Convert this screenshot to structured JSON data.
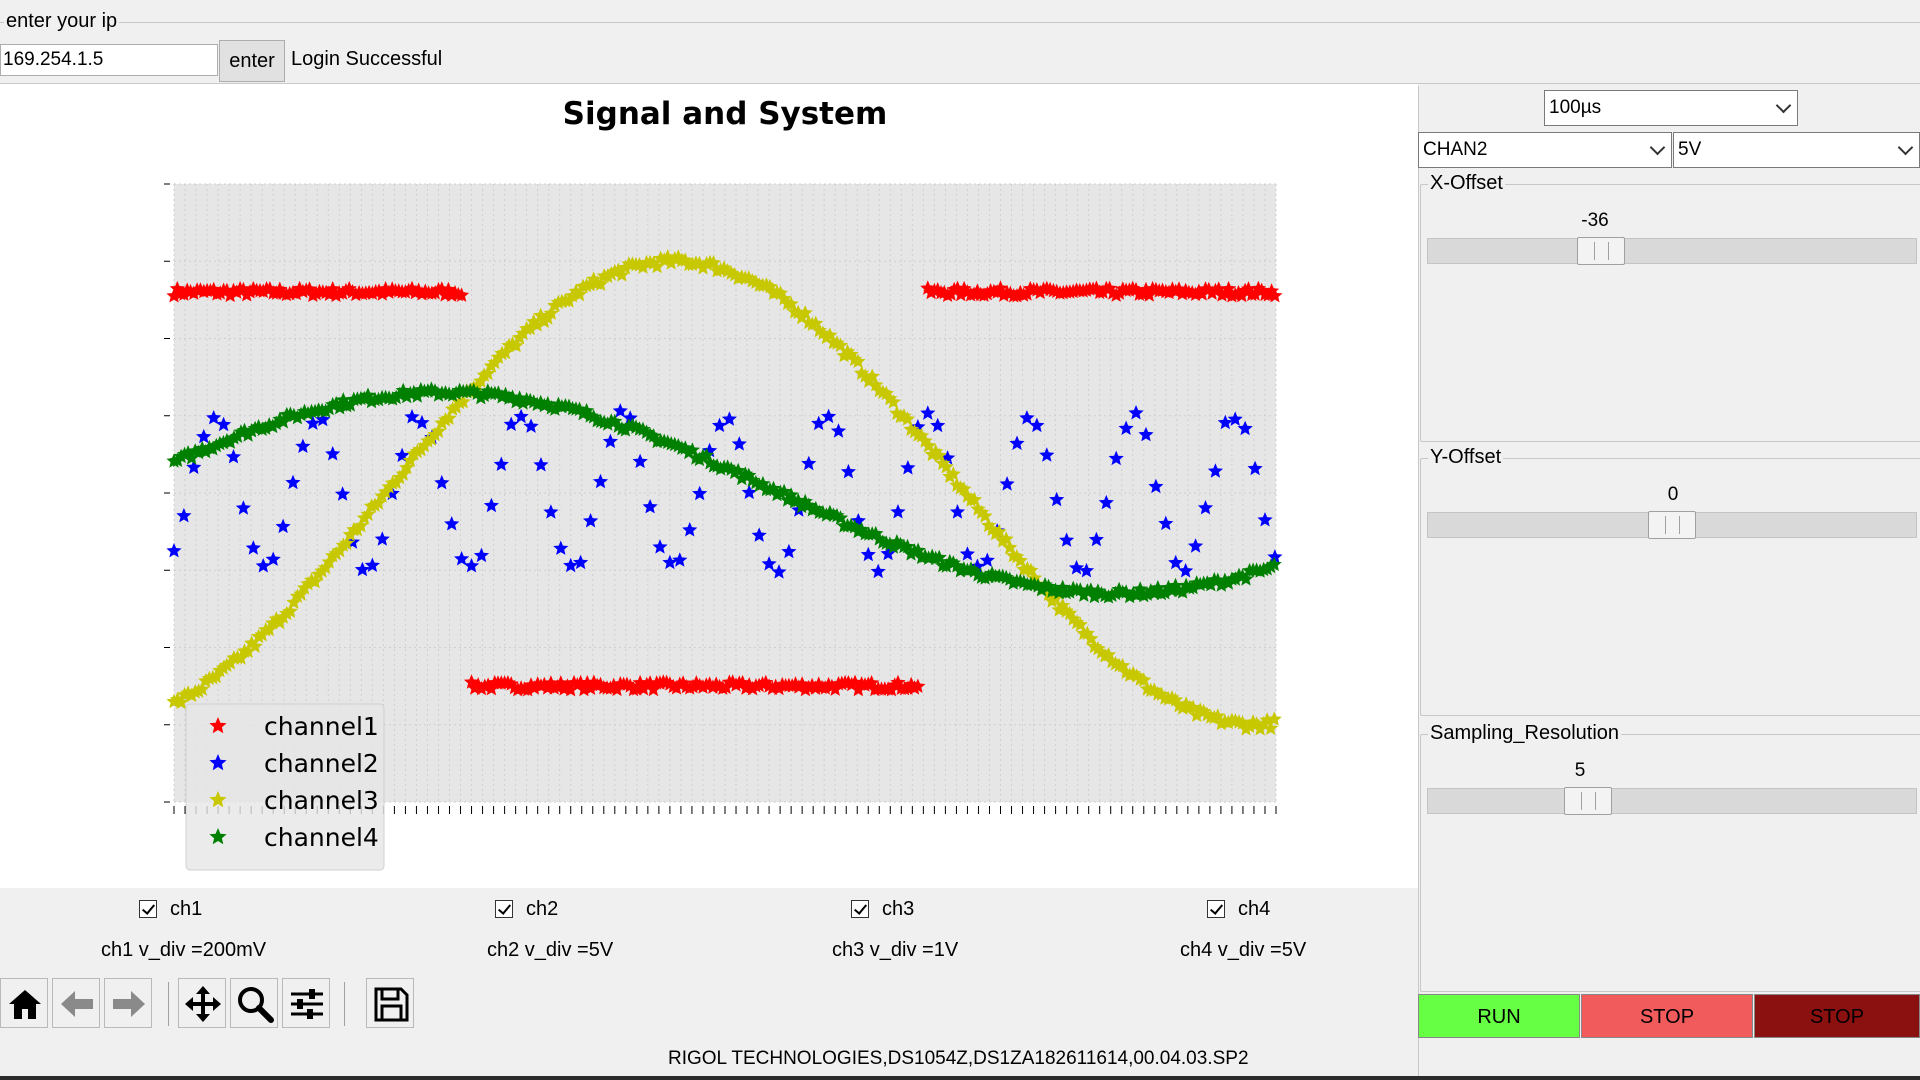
{
  "connection": {
    "group_title": "enter your ip",
    "ip_value": "169.254.1.5",
    "enter_label": "enter",
    "status": "Login Successful"
  },
  "chart_data": {
    "type": "scatter",
    "title": "Signal and System",
    "xlabel": "",
    "ylabel": "",
    "x_tick_labels": [],
    "y_tick_labels": [],
    "grid": true,
    "legend_placement": "lower-left",
    "xlim": [
      0,
      1000
    ],
    "ylim": [
      -4,
      4
    ],
    "marker": "star",
    "series": [
      {
        "name": "channel1",
        "color": "#ff0000",
        "shape": "square-wave",
        "high": 2.6,
        "low": -2.5,
        "transitions_x": [
          265,
          680
        ],
        "noise": 0.05
      },
      {
        "name": "channel2",
        "color": "#0000ff",
        "shape": "sine",
        "amplitude": 1.0,
        "offset": 0.0,
        "cycles": 10.8,
        "phase_x0_value": -0.8,
        "noise": 0.08
      },
      {
        "name": "channel3",
        "color": "#c8c800",
        "shape": "sine",
        "amplitude": 3.0,
        "offset": 0.0,
        "cycles": 0.95,
        "peak_x": 455,
        "noise": 0.06
      },
      {
        "name": "channel4",
        "color": "#008000",
        "shape": "sine",
        "amplitude": 1.3,
        "offset": 0.0,
        "cycles": 0.82,
        "peak_x": 245,
        "noise": 0.05
      }
    ]
  },
  "channels": [
    {
      "label": "ch1",
      "checked": true,
      "vdiv": "ch1 v_div =200mV"
    },
    {
      "label": "ch2",
      "checked": true,
      "vdiv": "ch2 v_div =5V"
    },
    {
      "label": "ch3",
      "checked": true,
      "vdiv": "ch3 v_div =1V"
    },
    {
      "label": "ch4",
      "checked": true,
      "vdiv": "ch4 v_div =5V"
    }
  ],
  "toolbar": {
    "icons": [
      "home-icon",
      "back-icon",
      "forward-icon",
      "pan-icon",
      "zoom-icon",
      "configure-icon",
      "save-icon"
    ]
  },
  "device_info": "RIGOL TECHNOLOGIES,DS1054Z,DS1ZA182611614,00.04.03.SP2",
  "controls": {
    "timebase": "100µs",
    "channel_select": "CHAN2",
    "volt_select": "5V",
    "x_offset": {
      "title": "X-Offset",
      "value": "-36",
      "fraction": 0.34
    },
    "y_offset": {
      "title": "Y-Offset",
      "value": "0",
      "fraction": 0.5
    },
    "sampling": {
      "title": "Sampling_Resolution",
      "value": "5",
      "fraction": 0.31
    },
    "run_label": "RUN",
    "stop_label": "STOP",
    "stop2_label": "STOP",
    "colors": {
      "run": "#66ff44",
      "stop": "#f25b5b",
      "stop2": "#8b1010"
    }
  }
}
